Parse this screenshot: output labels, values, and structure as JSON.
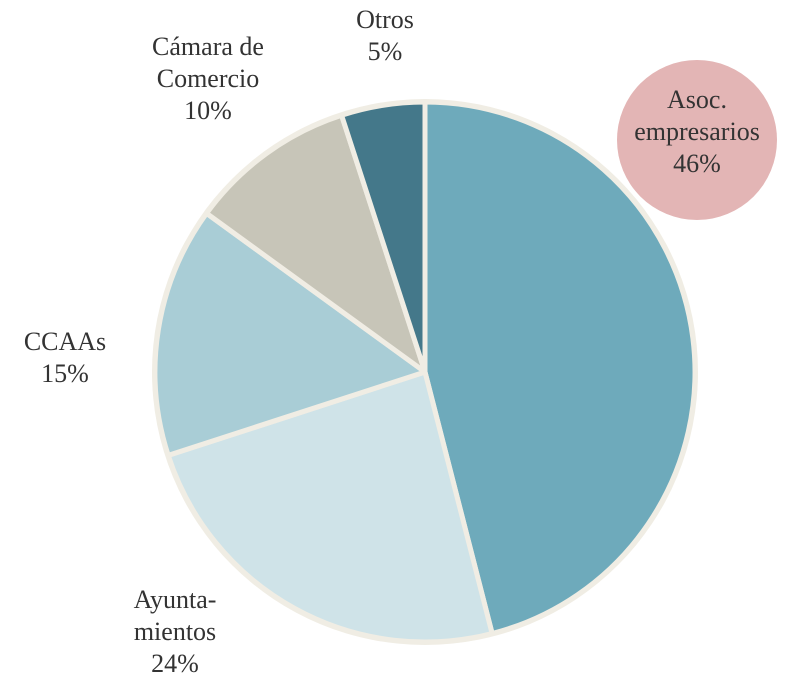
{
  "chart_data": {
    "type": "pie",
    "categories": [
      "Asoc.\nempresarios",
      "Ayunta-\nmientos",
      "CCAAs",
      "Cámara de\nComercio",
      "Otros"
    ],
    "values": [
      46,
      24,
      15,
      10,
      5
    ],
    "value_labels": [
      "46%",
      "24%",
      "15%",
      "10%",
      "5%"
    ],
    "colors": [
      "#6eaabb",
      "#cfe3e8",
      "#a9cdd6",
      "#c7c5b8",
      "#44788a"
    ],
    "highlight": {
      "index": 0,
      "color": "#e3b5b5"
    }
  }
}
